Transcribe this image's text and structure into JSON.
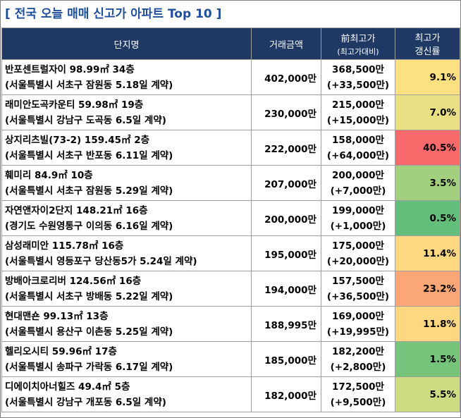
{
  "title": "[ 전국 오늘 매매 신고가 아파트 Top 10 ]",
  "headers": {
    "name": "단지명",
    "price": "거래금액",
    "prev_main": "前최고가",
    "prev_sub": "(최고가대비)",
    "rate_line1": "최고가",
    "rate_line2": "갱신률"
  },
  "rows": [
    {
      "name": "반포센트럴자이 98.99㎡ 34층",
      "loc": "(서울특별시 서초구 잠원동 5.18일 계약)",
      "price": "402,000만",
      "prev": "368,500만",
      "diff": "(+33,500만)",
      "rate": "9.1%",
      "color": "#fde180"
    },
    {
      "name": "래미안도곡카운티 59.98㎡ 19층",
      "loc": "(서울특별시 강남구 도곡동 6.5일 계약)",
      "price": "230,000만",
      "prev": "215,000만",
      "diff": "(+15,000만)",
      "rate": "7.0%",
      "color": "#e8e083"
    },
    {
      "name": "상지리츠빌(73-2) 159.45㎡ 2층",
      "loc": "(서울특별시 서초구 반포동 6.11일 계약)",
      "price": "222,000만",
      "prev": "158,000만",
      "diff": "(+64,000만)",
      "rate": "40.5%",
      "color": "#f8696b"
    },
    {
      "name": "훼미리 84.9㎡ 10층",
      "loc": "(서울특별시 서초구 잠원동 5.29일 계약)",
      "price": "207,000만",
      "prev": "200,000만",
      "diff": "(+7,000만)",
      "rate": "3.5%",
      "color": "#a2d07f"
    },
    {
      "name": "자연앤자이2단지 148.21㎡ 16층",
      "loc": "(경기도 수원영통구 이의동 6.16일 계약)",
      "price": "200,000만",
      "prev": "199,000만",
      "diff": "(+1,000만)",
      "rate": "0.5%",
      "color": "#63be7b"
    },
    {
      "name": "삼성래미안 115.78㎡ 16층",
      "loc": "(서울특별시 영등포구 당산동5가 5.24일 계약)",
      "price": "195,000만",
      "prev": "175,000만",
      "diff": "(+20,000만)",
      "rate": "11.4%",
      "color": "#fed880"
    },
    {
      "name": "방배아크로리버 124.56㎡ 16층",
      "loc": "(서울특별시 서초구 방배동 5.22일 계약)",
      "price": "194,000만",
      "prev": "157,500만",
      "diff": "(+36,500만)",
      "rate": "23.2%",
      "color": "#fba677"
    },
    {
      "name": "현대맨숀 99.13㎡ 13층",
      "loc": "(서울특별시 용산구 이촌동 5.25일 계약)",
      "price": "188,995만",
      "prev": "169,000만",
      "diff": "(+19,995만)",
      "rate": "11.8%",
      "color": "#fed780"
    },
    {
      "name": "헬리오시티 59.96㎡ 17층",
      "loc": "(서울특별시 송파구 가락동 6.17일 계약)",
      "price": "185,000만",
      "prev": "182,200만",
      "diff": "(+2,800만)",
      "rate": "1.5%",
      "color": "#76c47c"
    },
    {
      "name": "디에이치아너힐즈 49.4㎡ 5층",
      "loc": "(서울특별시 강남구 개포동 6.5일 계약)",
      "price": "182,000만",
      "prev": "172,500만",
      "diff": "(+9,500만)",
      "rate": "5.5%",
      "color": "#cfdb82"
    }
  ]
}
